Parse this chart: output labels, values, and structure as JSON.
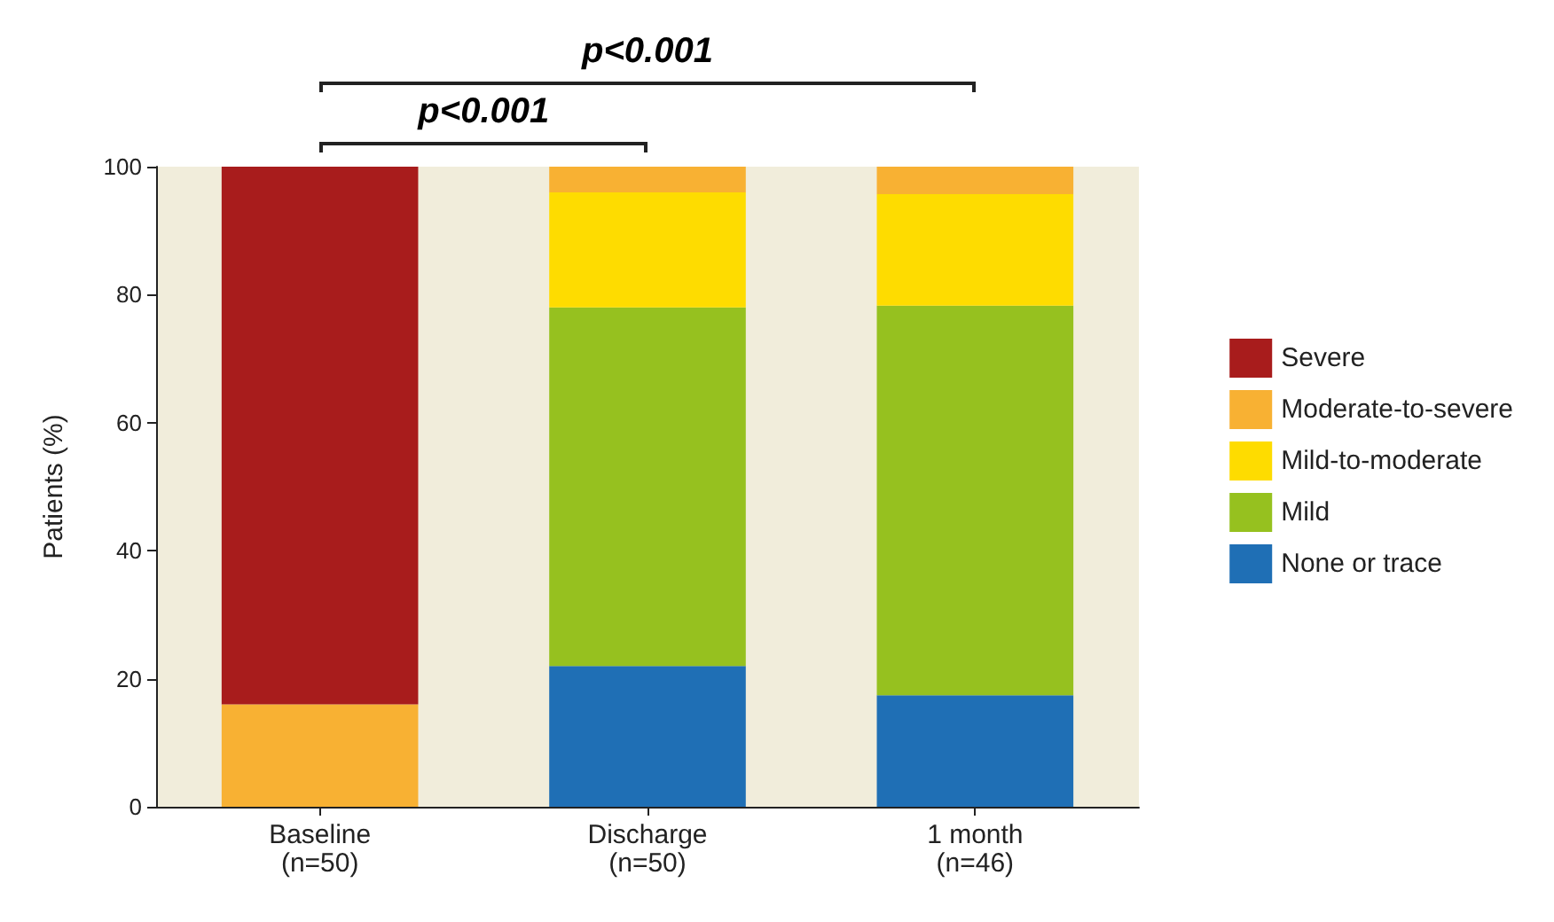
{
  "chart_data": {
    "type": "bar",
    "stacked": true,
    "ylabel": "Patients (%)",
    "categories": [
      "Baseline\n(n=50)",
      "Discharge\n(n=50)",
      "1 month\n(n=46)"
    ],
    "series": [
      {
        "name": "None or trace",
        "color": "#1f6fb5",
        "values": [
          0,
          22,
          17.4
        ]
      },
      {
        "name": "Mild",
        "color": "#96c11f",
        "values": [
          0,
          56,
          60.9
        ]
      },
      {
        "name": "Mild-to-moderate",
        "color": "#fedc00",
        "values": [
          0,
          18,
          17.4
        ]
      },
      {
        "name": "Moderate-to-severe",
        "color": "#f8b133",
        "values": [
          16,
          4,
          4.3
        ]
      },
      {
        "name": "Severe",
        "color": "#a81c1c",
        "values": [
          84,
          0,
          0
        ]
      }
    ],
    "ylim": [
      0,
      100
    ],
    "yticks": [
      0,
      20,
      40,
      60,
      80,
      100
    ],
    "grid": false,
    "legend": "right",
    "annotations": [
      "p<0.001",
      "p<0.001"
    ]
  }
}
